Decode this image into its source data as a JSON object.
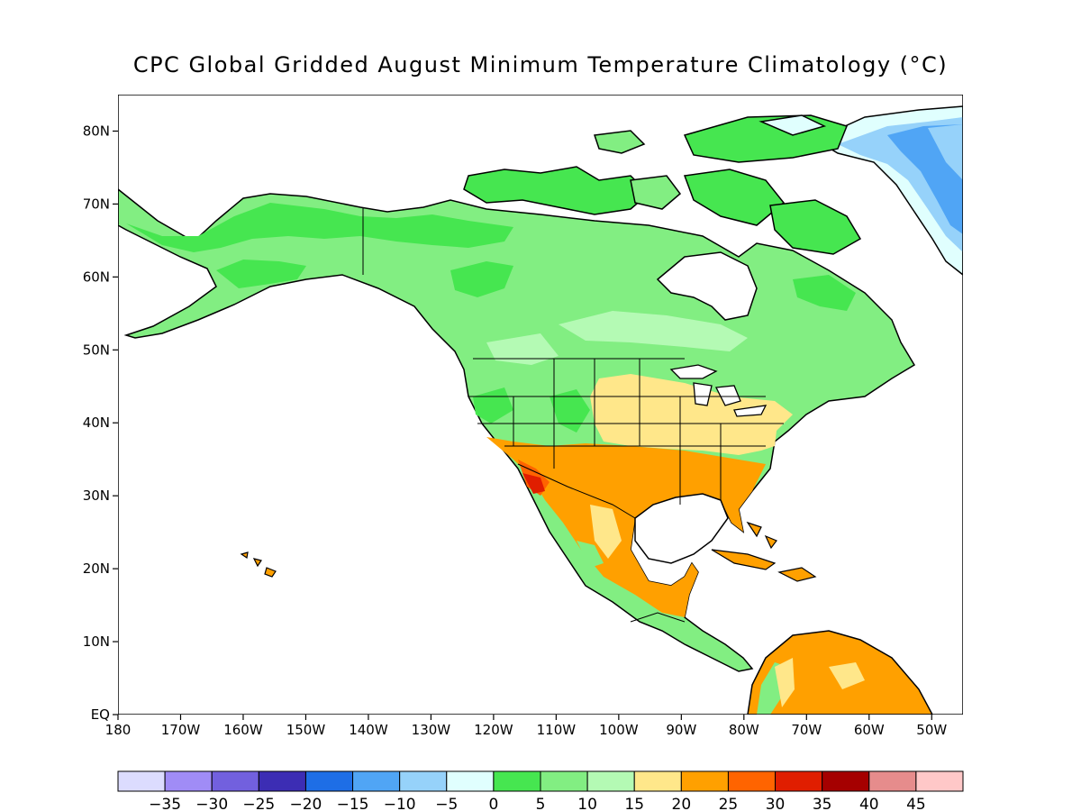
{
  "title": "CPC Global Gridded August Minimum Temperature Climatology (°C)",
  "map": {
    "projection": "cylindrical",
    "lon_range": [
      -180,
      -45
    ],
    "lat_range": [
      0,
      85
    ],
    "lat_ticks": [
      {
        "value": 80,
        "label": "80N"
      },
      {
        "value": 70,
        "label": "70N"
      },
      {
        "value": 60,
        "label": "60N"
      },
      {
        "value": 50,
        "label": "50N"
      },
      {
        "value": 40,
        "label": "40N"
      },
      {
        "value": 30,
        "label": "30N"
      },
      {
        "value": 20,
        "label": "20N"
      },
      {
        "value": 10,
        "label": "10N"
      },
      {
        "value": 0,
        "label": "EQ"
      }
    ],
    "lon_ticks": [
      {
        "value": -180,
        "label": "180"
      },
      {
        "value": -170,
        "label": "170W"
      },
      {
        "value": -160,
        "label": "160W"
      },
      {
        "value": -150,
        "label": "150W"
      },
      {
        "value": -140,
        "label": "140W"
      },
      {
        "value": -130,
        "label": "130W"
      },
      {
        "value": -120,
        "label": "120W"
      },
      {
        "value": -110,
        "label": "110W"
      },
      {
        "value": -100,
        "label": "100W"
      },
      {
        "value": -90,
        "label": "90W"
      },
      {
        "value": -80,
        "label": "80W"
      },
      {
        "value": -70,
        "label": "70W"
      },
      {
        "value": -60,
        "label": "60W"
      },
      {
        "value": -50,
        "label": "50W"
      }
    ]
  },
  "colorbar": {
    "labels": [
      "-35",
      "-30",
      "-25",
      "-20",
      "-15",
      "-10",
      "-5",
      "0",
      "5",
      "10",
      "15",
      "20",
      "25",
      "30",
      "35",
      "40",
      "45"
    ],
    "colors": [
      "#dcdcfe",
      "#a08cf6",
      "#7260de",
      "#3c2db4",
      "#1e6ee6",
      "#50a5f5",
      "#96d2fa",
      "#e0fffe",
      "#46e650",
      "#82ee82",
      "#b4fab4",
      "#ffe78a",
      "#ffa000",
      "#ff6400",
      "#e01e00",
      "#a50000",
      "#e68c8c",
      "#ffc8c8"
    ]
  }
}
